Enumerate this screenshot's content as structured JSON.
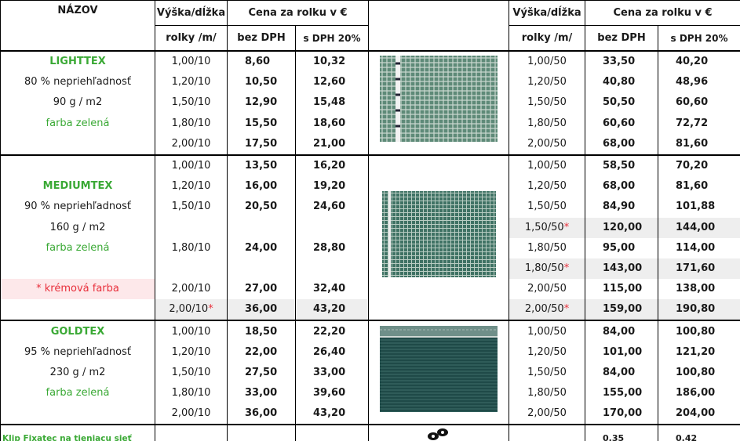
{
  "header": {
    "name": "NÁZOV",
    "height_length": "Výška/dĺžka",
    "price": "Cena za rolku v €",
    "unit": "rolky /m/",
    "without_vat": "bez DPH",
    "with_vat": "s DPH 20%"
  },
  "sections": [
    {
      "rows": [
        {
          "cells": [
            "LIGHTTEX",
            "1,00/10",
            "8,60",
            "10,32",
            "1,00/50",
            "33,50",
            "40,20"
          ],
          "name_color": "#3aa935"
        },
        {
          "cells": [
            "80 % nepriehľadnosť",
            "1,20/10",
            "10,50",
            "12,60",
            "1,20/50",
            "40,80",
            "48,96"
          ]
        },
        {
          "cells": [
            "90 g / m2",
            "1,50/10",
            "12,90",
            "15,48",
            "1,50/50",
            "50,50",
            "60,60"
          ]
        },
        {
          "cells": [
            "farba zelená",
            "1,80/10",
            "15,50",
            "18,60",
            "1,80/50",
            "60,60",
            "72,72"
          ],
          "name_color": "#3aa935"
        },
        {
          "cells": [
            null,
            "2,00/10",
            "17,50",
            "21,00",
            "2,00/50",
            "68,00",
            "81,60"
          ]
        }
      ]
    },
    {
      "rows": [
        {
          "cells": [
            null,
            "1,00/10",
            "13,50",
            "16,20",
            "1,00/50",
            "58,50",
            "70,20"
          ]
        },
        {
          "cells": [
            "MEDIUMTEX",
            "1,20/10",
            "16,00",
            "19,20",
            "1,20/50",
            "68,00",
            "81,60"
          ],
          "name_color": "#3aa935"
        },
        {
          "cells": [
            "90 % nepriehľadnosť",
            "1,50/10",
            "20,50",
            "24,60",
            "1,50/50",
            "84,90",
            "101,88"
          ]
        },
        {
          "cells": [
            "160 g / m2",
            null,
            null,
            null,
            "1,50/50*",
            "120,00",
            "144,00"
          ]
        },
        {
          "cells": [
            "farba zelená",
            "1,80/10",
            "24,00",
            "28,80",
            "1,80/50",
            "95,00",
            "114,00"
          ],
          "name_color": "#3aa935"
        },
        {
          "cells": [
            null,
            null,
            null,
            null,
            "1,80/50*",
            "143,00",
            "171,60"
          ]
        },
        {
          "cells": [
            "* krémová farba",
            "2,00/10",
            "27,00",
            "32,40",
            "2,00/50",
            "115,00",
            "138,00"
          ],
          "name_color": "#e8303c"
        },
        {
          "cells": [
            null,
            "2,00/10*",
            "36,00",
            "43,20",
            "2,00/50*",
            "159,00",
            "190,80"
          ]
        }
      ]
    },
    {
      "rows": [
        {
          "cells": [
            "GOLDTEX",
            "1,00/10",
            "18,50",
            "22,20",
            "1,00/50",
            "84,00",
            "100,80"
          ],
          "name_color": "#3aa935"
        },
        {
          "cells": [
            "95 % nepriehľadnosť",
            "1,20/10",
            "22,00",
            "26,40",
            "1,20/50",
            "101,00",
            "121,20"
          ]
        },
        {
          "cells": [
            "230 g / m2",
            "1,50/10",
            "27,50",
            "33,00",
            "1,50/50",
            "84,00",
            "100,80"
          ]
        },
        {
          "cells": [
            "farba zelená",
            "1,80/10",
            "33,00",
            "39,60",
            "1,80/50",
            "155,00",
            "186,00"
          ],
          "name_color": "#3aa935"
        },
        {
          "cells": [
            null,
            "2,00/10",
            "36,00",
            "43,20",
            "2,00/50",
            "170,00",
            "204,00"
          ]
        }
      ]
    }
  ],
  "footer": {
    "label": "Klip Fixatec na tieniacu sieť",
    "without_vat": "0,35",
    "with_vat": "0,42"
  }
}
